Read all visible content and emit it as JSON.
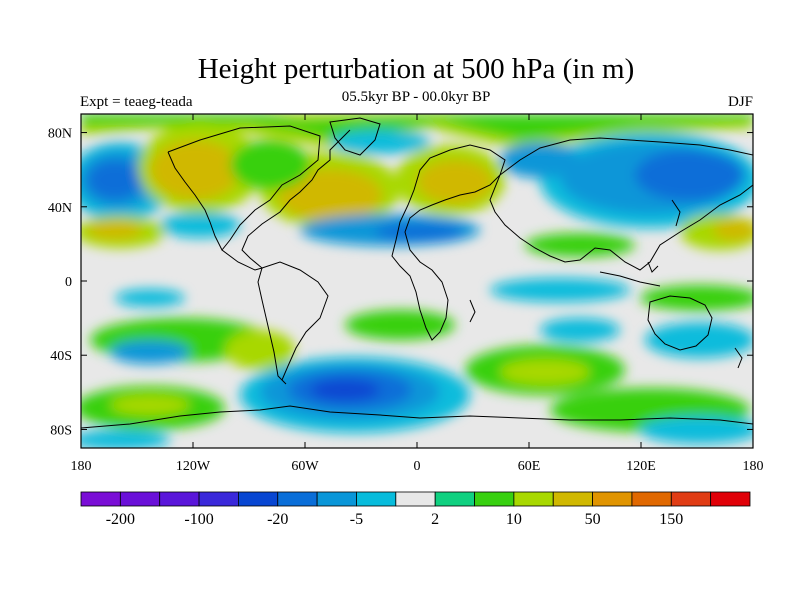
{
  "title": "Height perturbation at 500 hPa (in m)",
  "subtitle": "05.5kyr BP - 00.0kyr BP",
  "left_label": "Expt = teaeg-teada",
  "right_label": "DJF",
  "colors": {
    "land_outline": "#000000",
    "zero_band": "#e8e8e8",
    "frame": "#000000"
  },
  "chart_data": {
    "type": "heatmap",
    "projection": "cylindrical-equidistant",
    "title": "Height perturbation at 500 hPa (in m)",
    "variable": "500 hPa geopotential height difference",
    "units": "m",
    "xlim": [
      -180,
      180
    ],
    "ylim": [
      -90,
      90
    ],
    "x_ticks": [
      {
        "value": -180,
        "label": "180"
      },
      {
        "value": -120,
        "label": "120W"
      },
      {
        "value": -60,
        "label": "60W"
      },
      {
        "value": 0,
        "label": "0"
      },
      {
        "value": 60,
        "label": "60E"
      },
      {
        "value": 120,
        "label": "120E"
      },
      {
        "value": 180,
        "label": "180"
      }
    ],
    "y_ticks": [
      {
        "value": 80,
        "label": "80N"
      },
      {
        "value": 40,
        "label": "40N"
      },
      {
        "value": 0,
        "label": "0"
      },
      {
        "value": -40,
        "label": "40S"
      },
      {
        "value": -80,
        "label": "80S"
      }
    ],
    "colorbar": {
      "colors": [
        "#7a0ed6",
        "#6a10d8",
        "#5a16da",
        "#3a28da",
        "#0846d2",
        "#0a6ed8",
        "#0a96d8",
        "#08bcdc",
        "#e8e8e8",
        "#10d080",
        "#38d010",
        "#a8d800",
        "#d0b800",
        "#e09400",
        "#e06800",
        "#e03c14",
        "#e00008"
      ],
      "labels": [
        {
          "after_bin": 1,
          "text": "-200"
        },
        {
          "after_bin": 3,
          "text": "-100"
        },
        {
          "after_bin": 5,
          "text": "-20"
        },
        {
          "after_bin": 7,
          "text": "-5"
        },
        {
          "after_bin": 9,
          "text": "2"
        },
        {
          "after_bin": 11,
          "text": "10"
        },
        {
          "after_bin": 13,
          "text": "50"
        },
        {
          "after_bin": 15,
          "text": "150"
        }
      ]
    },
    "anomaly_regions": [
      {
        "name": "north-pacific-low",
        "lon_min": -178,
        "lon_max": -150,
        "lat_min": 28,
        "lat_max": 62,
        "level": "-5"
      },
      {
        "name": "pacific-positive",
        "lon_min": -150,
        "lon_max": -100,
        "lat_min": 36,
        "lat_max": 80,
        "level": "10"
      },
      {
        "name": "north-america-high",
        "lon_min": -80,
        "lon_max": -25,
        "lat_min": 32,
        "lat_max": 70,
        "level": "50"
      },
      {
        "name": "europe-high",
        "lon_min": 0,
        "lon_max": 45,
        "lat_min": 40,
        "lat_max": 68,
        "level": "50"
      },
      {
        "name": "siberia-low",
        "lon_min": 40,
        "lon_max": 180,
        "lat_min": 40,
        "lat_max": 80,
        "level": "-5"
      },
      {
        "name": "southern-ocean-low",
        "lon_min": -90,
        "lon_max": 0,
        "lat_min": -85,
        "lat_max": -40,
        "level": "-20"
      },
      {
        "name": "south-indian-positive",
        "lon_min": 40,
        "lon_max": 120,
        "lat_min": -65,
        "lat_max": -25,
        "level": "10"
      }
    ]
  }
}
